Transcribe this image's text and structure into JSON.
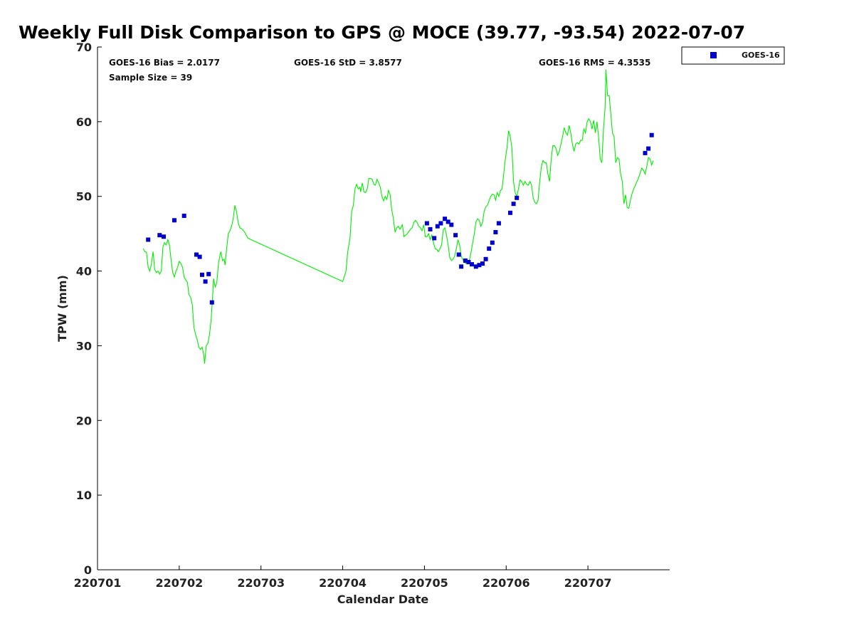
{
  "chart_data": {
    "type": "scatter",
    "title": "Weekly Full Disk Comparison to GPS @ MOCE (39.77, -93.54) 2022-07-07",
    "xlabel": "Calendar Date",
    "ylabel": "TPW (mm)",
    "xlim": [
      0,
      7
    ],
    "ylim": [
      0,
      70
    ],
    "x_ticks": [
      {
        "value": 0,
        "label": "220701"
      },
      {
        "value": 1,
        "label": "220702"
      },
      {
        "value": 2,
        "label": "220703"
      },
      {
        "value": 3,
        "label": "220704"
      },
      {
        "value": 4,
        "label": "220705"
      },
      {
        "value": 5,
        "label": "220706"
      },
      {
        "value": 6,
        "label": "220707"
      }
    ],
    "y_ticks": [
      {
        "value": 0,
        "label": "0"
      },
      {
        "value": 10,
        "label": "10"
      },
      {
        "value": 20,
        "label": "20"
      },
      {
        "value": 30,
        "label": "30"
      },
      {
        "value": 40,
        "label": "40"
      },
      {
        "value": 50,
        "label": "50"
      },
      {
        "value": 60,
        "label": "60"
      },
      {
        "value": 70,
        "label": "70"
      }
    ],
    "stats": {
      "bias": "GOES-16 Bias = 2.0177",
      "std": "GOES-16 StD = 3.8577",
      "rms": "GOES-16 RMS = 4.3535",
      "sample": "Sample Size = 39"
    },
    "legend": {
      "label": "GOES-16",
      "placement": "top-right outside"
    },
    "gps_line": {
      "name": "GPS",
      "color": "#00ee00",
      "points": [
        [
          0.56,
          43.0
        ],
        [
          0.58,
          42.6
        ],
        [
          0.6,
          42.5
        ],
        [
          0.62,
          40.5
        ],
        [
          0.64,
          40.0
        ],
        [
          0.66,
          41.0
        ],
        [
          0.68,
          42.6
        ],
        [
          0.7,
          40.2
        ],
        [
          0.72,
          39.8
        ],
        [
          0.74,
          40.0
        ],
        [
          0.76,
          39.6
        ],
        [
          0.78,
          40.0
        ],
        [
          0.8,
          43.2
        ],
        [
          0.82,
          43.8
        ],
        [
          0.84,
          43.5
        ],
        [
          0.86,
          44.2
        ],
        [
          0.88,
          43.5
        ],
        [
          0.9,
          41.5
        ],
        [
          0.92,
          39.8
        ],
        [
          0.94,
          39.2
        ],
        [
          0.96,
          40.0
        ],
        [
          0.98,
          40.5
        ],
        [
          1.0,
          41.3
        ],
        [
          1.02,
          41.0
        ],
        [
          1.04,
          40.5
        ],
        [
          1.06,
          39.2
        ],
        [
          1.08,
          38.8
        ],
        [
          1.1,
          38.5
        ],
        [
          1.12,
          36.8
        ],
        [
          1.14,
          36.5
        ],
        [
          1.16,
          35.5
        ],
        [
          1.18,
          32.5
        ],
        [
          1.2,
          31.5
        ],
        [
          1.22,
          30.8
        ],
        [
          1.24,
          29.8
        ],
        [
          1.26,
          29.5
        ],
        [
          1.28,
          29.8
        ],
        [
          1.3,
          28.8
        ],
        [
          1.31,
          27.6
        ],
        [
          1.33,
          30.0
        ],
        [
          1.35,
          30.3
        ],
        [
          1.37,
          31.5
        ],
        [
          1.39,
          33.5
        ],
        [
          1.41,
          36.8
        ],
        [
          1.42,
          39.0
        ],
        [
          1.44,
          37.8
        ],
        [
          1.46,
          38.5
        ],
        [
          1.48,
          41.0
        ],
        [
          1.5,
          42.2
        ],
        [
          1.51,
          42.6
        ],
        [
          1.53,
          41.4
        ],
        [
          1.55,
          41.6
        ],
        [
          1.56,
          40.8
        ],
        [
          1.58,
          43.0
        ],
        [
          1.6,
          45.0
        ],
        [
          1.62,
          45.4
        ],
        [
          1.64,
          46.0
        ],
        [
          1.66,
          47.0
        ],
        [
          1.68,
          48.8
        ],
        [
          1.7,
          48.0
        ],
        [
          1.72,
          46.5
        ],
        [
          1.74,
          45.8
        ],
        [
          1.76,
          45.7
        ],
        [
          1.78,
          45.5
        ],
        [
          1.8,
          45.2
        ],
        [
          1.82,
          44.8
        ],
        [
          1.84,
          44.4
        ],
        [
          3.0,
          38.6
        ],
        [
          3.04,
          40.0
        ],
        [
          3.06,
          42.5
        ],
        [
          3.09,
          44.5
        ],
        [
          3.11,
          48.0
        ],
        [
          3.13,
          48.8
        ],
        [
          3.15,
          51.0
        ],
        [
          3.17,
          51.6
        ],
        [
          3.19,
          51.0
        ],
        [
          3.21,
          51.2
        ],
        [
          3.22,
          50.6
        ],
        [
          3.24,
          51.8
        ],
        [
          3.26,
          50.6
        ],
        [
          3.28,
          50.5
        ],
        [
          3.3,
          51.0
        ],
        [
          3.32,
          52.4
        ],
        [
          3.34,
          52.4
        ],
        [
          3.36,
          52.3
        ],
        [
          3.38,
          51.6
        ],
        [
          3.4,
          51.5
        ],
        [
          3.42,
          52.3
        ],
        [
          3.44,
          51.8
        ],
        [
          3.46,
          51.2
        ],
        [
          3.48,
          50.0
        ],
        [
          3.5,
          49.4
        ],
        [
          3.52,
          50.0
        ],
        [
          3.54,
          49.6
        ],
        [
          3.56,
          50.8
        ],
        [
          3.58,
          50.2
        ],
        [
          3.6,
          48.2
        ],
        [
          3.62,
          47.0
        ],
        [
          3.64,
          45.2
        ],
        [
          3.66,
          45.8
        ],
        [
          3.68,
          46.0
        ],
        [
          3.7,
          45.6
        ],
        [
          3.72,
          46.0
        ],
        [
          3.73,
          46.2
        ],
        [
          3.75,
          44.6
        ],
        [
          3.77,
          44.8
        ],
        [
          3.79,
          45.0
        ],
        [
          3.81,
          45.3
        ],
        [
          3.83,
          45.6
        ],
        [
          3.85,
          45.8
        ],
        [
          3.87,
          46.5
        ],
        [
          3.89,
          46.8
        ],
        [
          3.91,
          46.5
        ],
        [
          3.93,
          46.0
        ],
        [
          3.95,
          45.8
        ],
        [
          3.97,
          45.4
        ],
        [
          3.99,
          46.2
        ],
        [
          4.01,
          44.6
        ],
        [
          4.03,
          44.6
        ],
        [
          4.05,
          45.0
        ],
        [
          4.07,
          44.2
        ],
        [
          4.09,
          44.8
        ],
        [
          4.11,
          43.8
        ],
        [
          4.13,
          43.0
        ],
        [
          4.15,
          42.9
        ],
        [
          4.17,
          42.6
        ],
        [
          4.19,
          43.0
        ],
        [
          4.21,
          43.5
        ],
        [
          4.23,
          45.5
        ],
        [
          4.25,
          45.8
        ],
        [
          4.27,
          44.8
        ],
        [
          4.29,
          43.5
        ],
        [
          4.31,
          41.8
        ],
        [
          4.33,
          41.4
        ],
        [
          4.35,
          41.6
        ],
        [
          4.37,
          42.0
        ],
        [
          4.39,
          43.0
        ],
        [
          4.41,
          44.2
        ],
        [
          4.43,
          43.5
        ],
        [
          4.45,
          42.0
        ],
        [
          4.47,
          41.5
        ],
        [
          4.49,
          41.2
        ],
        [
          4.51,
          41.0
        ],
        [
          4.53,
          41.2
        ],
        [
          4.55,
          41.5
        ],
        [
          4.57,
          42.5
        ],
        [
          4.59,
          43.8
        ],
        [
          4.61,
          45.0
        ],
        [
          4.63,
          46.6
        ],
        [
          4.65,
          47.0
        ],
        [
          4.67,
          46.8
        ],
        [
          4.69,
          46.0
        ],
        [
          4.71,
          46.5
        ],
        [
          4.73,
          48.0
        ],
        [
          4.75,
          48.6
        ],
        [
          4.77,
          48.8
        ],
        [
          4.79,
          49.4
        ],
        [
          4.81,
          50.0
        ],
        [
          4.83,
          50.3
        ],
        [
          4.85,
          50.2
        ],
        [
          4.87,
          49.5
        ],
        [
          4.89,
          50.5
        ],
        [
          4.91,
          50.0
        ],
        [
          4.93,
          50.8
        ],
        [
          4.95,
          51.0
        ],
        [
          4.97,
          53.0
        ],
        [
          4.99,
          55.0
        ],
        [
          5.01,
          56.5
        ],
        [
          5.03,
          58.8
        ],
        [
          5.05,
          58.0
        ],
        [
          5.07,
          56.5
        ],
        [
          5.09,
          52.0
        ],
        [
          5.11,
          50.5
        ],
        [
          5.13,
          50.0
        ],
        [
          5.15,
          51.0
        ],
        [
          5.17,
          52.2
        ],
        [
          5.19,
          52.0
        ],
        [
          5.21,
          51.5
        ],
        [
          5.23,
          52.0
        ],
        [
          5.25,
          51.6
        ],
        [
          5.27,
          51.5
        ],
        [
          5.29,
          52.0
        ],
        [
          5.31,
          51.5
        ],
        [
          5.33,
          49.8
        ],
        [
          5.35,
          49.2
        ],
        [
          5.37,
          49.0
        ],
        [
          5.39,
          49.5
        ],
        [
          5.41,
          52.0
        ],
        [
          5.43,
          54.0
        ],
        [
          5.45,
          54.8
        ],
        [
          5.47,
          54.5
        ],
        [
          5.49,
          54.5
        ],
        [
          5.51,
          53.0
        ],
        [
          5.53,
          52.0
        ],
        [
          5.55,
          55.0
        ],
        [
          5.57,
          56.8
        ],
        [
          5.59,
          56.8
        ],
        [
          5.61,
          56.4
        ],
        [
          5.63,
          55.5
        ],
        [
          5.65,
          56.0
        ],
        [
          5.67,
          57.0
        ],
        [
          5.69,
          58.0
        ],
        [
          5.71,
          59.2
        ],
        [
          5.73,
          58.5
        ],
        [
          5.75,
          58.2
        ],
        [
          5.77,
          59.5
        ],
        [
          5.79,
          58.5
        ],
        [
          5.81,
          57.0
        ],
        [
          5.83,
          56.0
        ],
        [
          5.85,
          57.0
        ],
        [
          5.87,
          57.2
        ],
        [
          5.89,
          57.0
        ],
        [
          5.91,
          57.5
        ],
        [
          5.93,
          57.5
        ],
        [
          5.95,
          59.0
        ],
        [
          5.97,
          58.5
        ],
        [
          5.99,
          60.0
        ],
        [
          6.01,
          60.4
        ],
        [
          6.03,
          60.0
        ],
        [
          6.05,
          59.0
        ],
        [
          6.07,
          60.2
        ],
        [
          6.09,
          58.5
        ],
        [
          6.11,
          60.0
        ],
        [
          6.13,
          58.0
        ],
        [
          6.15,
          55.0
        ],
        [
          6.17,
          54.5
        ],
        [
          6.19,
          59.0
        ],
        [
          6.21,
          62.0
        ],
        [
          6.22,
          67.0
        ],
        [
          6.24,
          63.5
        ],
        [
          6.26,
          63.5
        ],
        [
          6.28,
          61.0
        ],
        [
          6.3,
          58.5
        ],
        [
          6.32,
          58.0
        ],
        [
          6.34,
          54.5
        ],
        [
          6.36,
          55.2
        ],
        [
          6.38,
          55.0
        ],
        [
          6.4,
          53.0
        ],
        [
          6.42,
          52.0
        ],
        [
          6.44,
          49.0
        ],
        [
          6.46,
          50.2
        ],
        [
          6.48,
          48.5
        ],
        [
          6.5,
          48.4
        ],
        [
          6.52,
          49.5
        ],
        [
          6.54,
          50.4
        ],
        [
          6.56,
          51.0
        ],
        [
          6.58,
          51.5
        ],
        [
          6.6,
          52.0
        ],
        [
          6.62,
          52.5
        ],
        [
          6.64,
          53.2
        ],
        [
          6.66,
          53.8
        ],
        [
          6.68,
          53.5
        ],
        [
          6.7,
          53.0
        ],
        [
          6.72,
          54.0
        ],
        [
          6.74,
          55.2
        ],
        [
          6.76,
          55.0
        ],
        [
          6.78,
          54.2
        ],
        [
          6.8,
          54.8
        ]
      ]
    },
    "series": [
      {
        "name": "GOES-16",
        "color": "#0000cc",
        "points": [
          [
            0.62,
            44.2
          ],
          [
            0.76,
            44.8
          ],
          [
            0.81,
            44.6
          ],
          [
            0.94,
            46.8
          ],
          [
            1.06,
            47.4
          ],
          [
            1.21,
            42.2
          ],
          [
            1.25,
            41.9
          ],
          [
            1.28,
            39.5
          ],
          [
            1.32,
            38.6
          ],
          [
            1.36,
            39.6
          ],
          [
            1.4,
            35.8
          ],
          [
            4.03,
            46.4
          ],
          [
            4.07,
            45.6
          ],
          [
            4.12,
            44.4
          ],
          [
            4.16,
            46.0
          ],
          [
            4.2,
            46.4
          ],
          [
            4.25,
            47.0
          ],
          [
            4.29,
            46.6
          ],
          [
            4.33,
            46.2
          ],
          [
            4.38,
            44.8
          ],
          [
            4.42,
            42.2
          ],
          [
            4.45,
            40.6
          ],
          [
            4.5,
            41.4
          ],
          [
            4.54,
            41.2
          ],
          [
            4.58,
            40.9
          ],
          [
            4.63,
            40.6
          ],
          [
            4.67,
            40.8
          ],
          [
            4.71,
            41.0
          ],
          [
            4.75,
            41.6
          ],
          [
            4.79,
            43.0
          ],
          [
            4.83,
            43.8
          ],
          [
            4.87,
            45.2
          ],
          [
            4.91,
            46.4
          ],
          [
            5.05,
            47.8
          ],
          [
            5.09,
            49.0
          ],
          [
            5.13,
            49.8
          ],
          [
            6.7,
            55.8
          ],
          [
            6.74,
            56.4
          ],
          [
            6.78,
            58.2
          ]
        ]
      }
    ]
  }
}
